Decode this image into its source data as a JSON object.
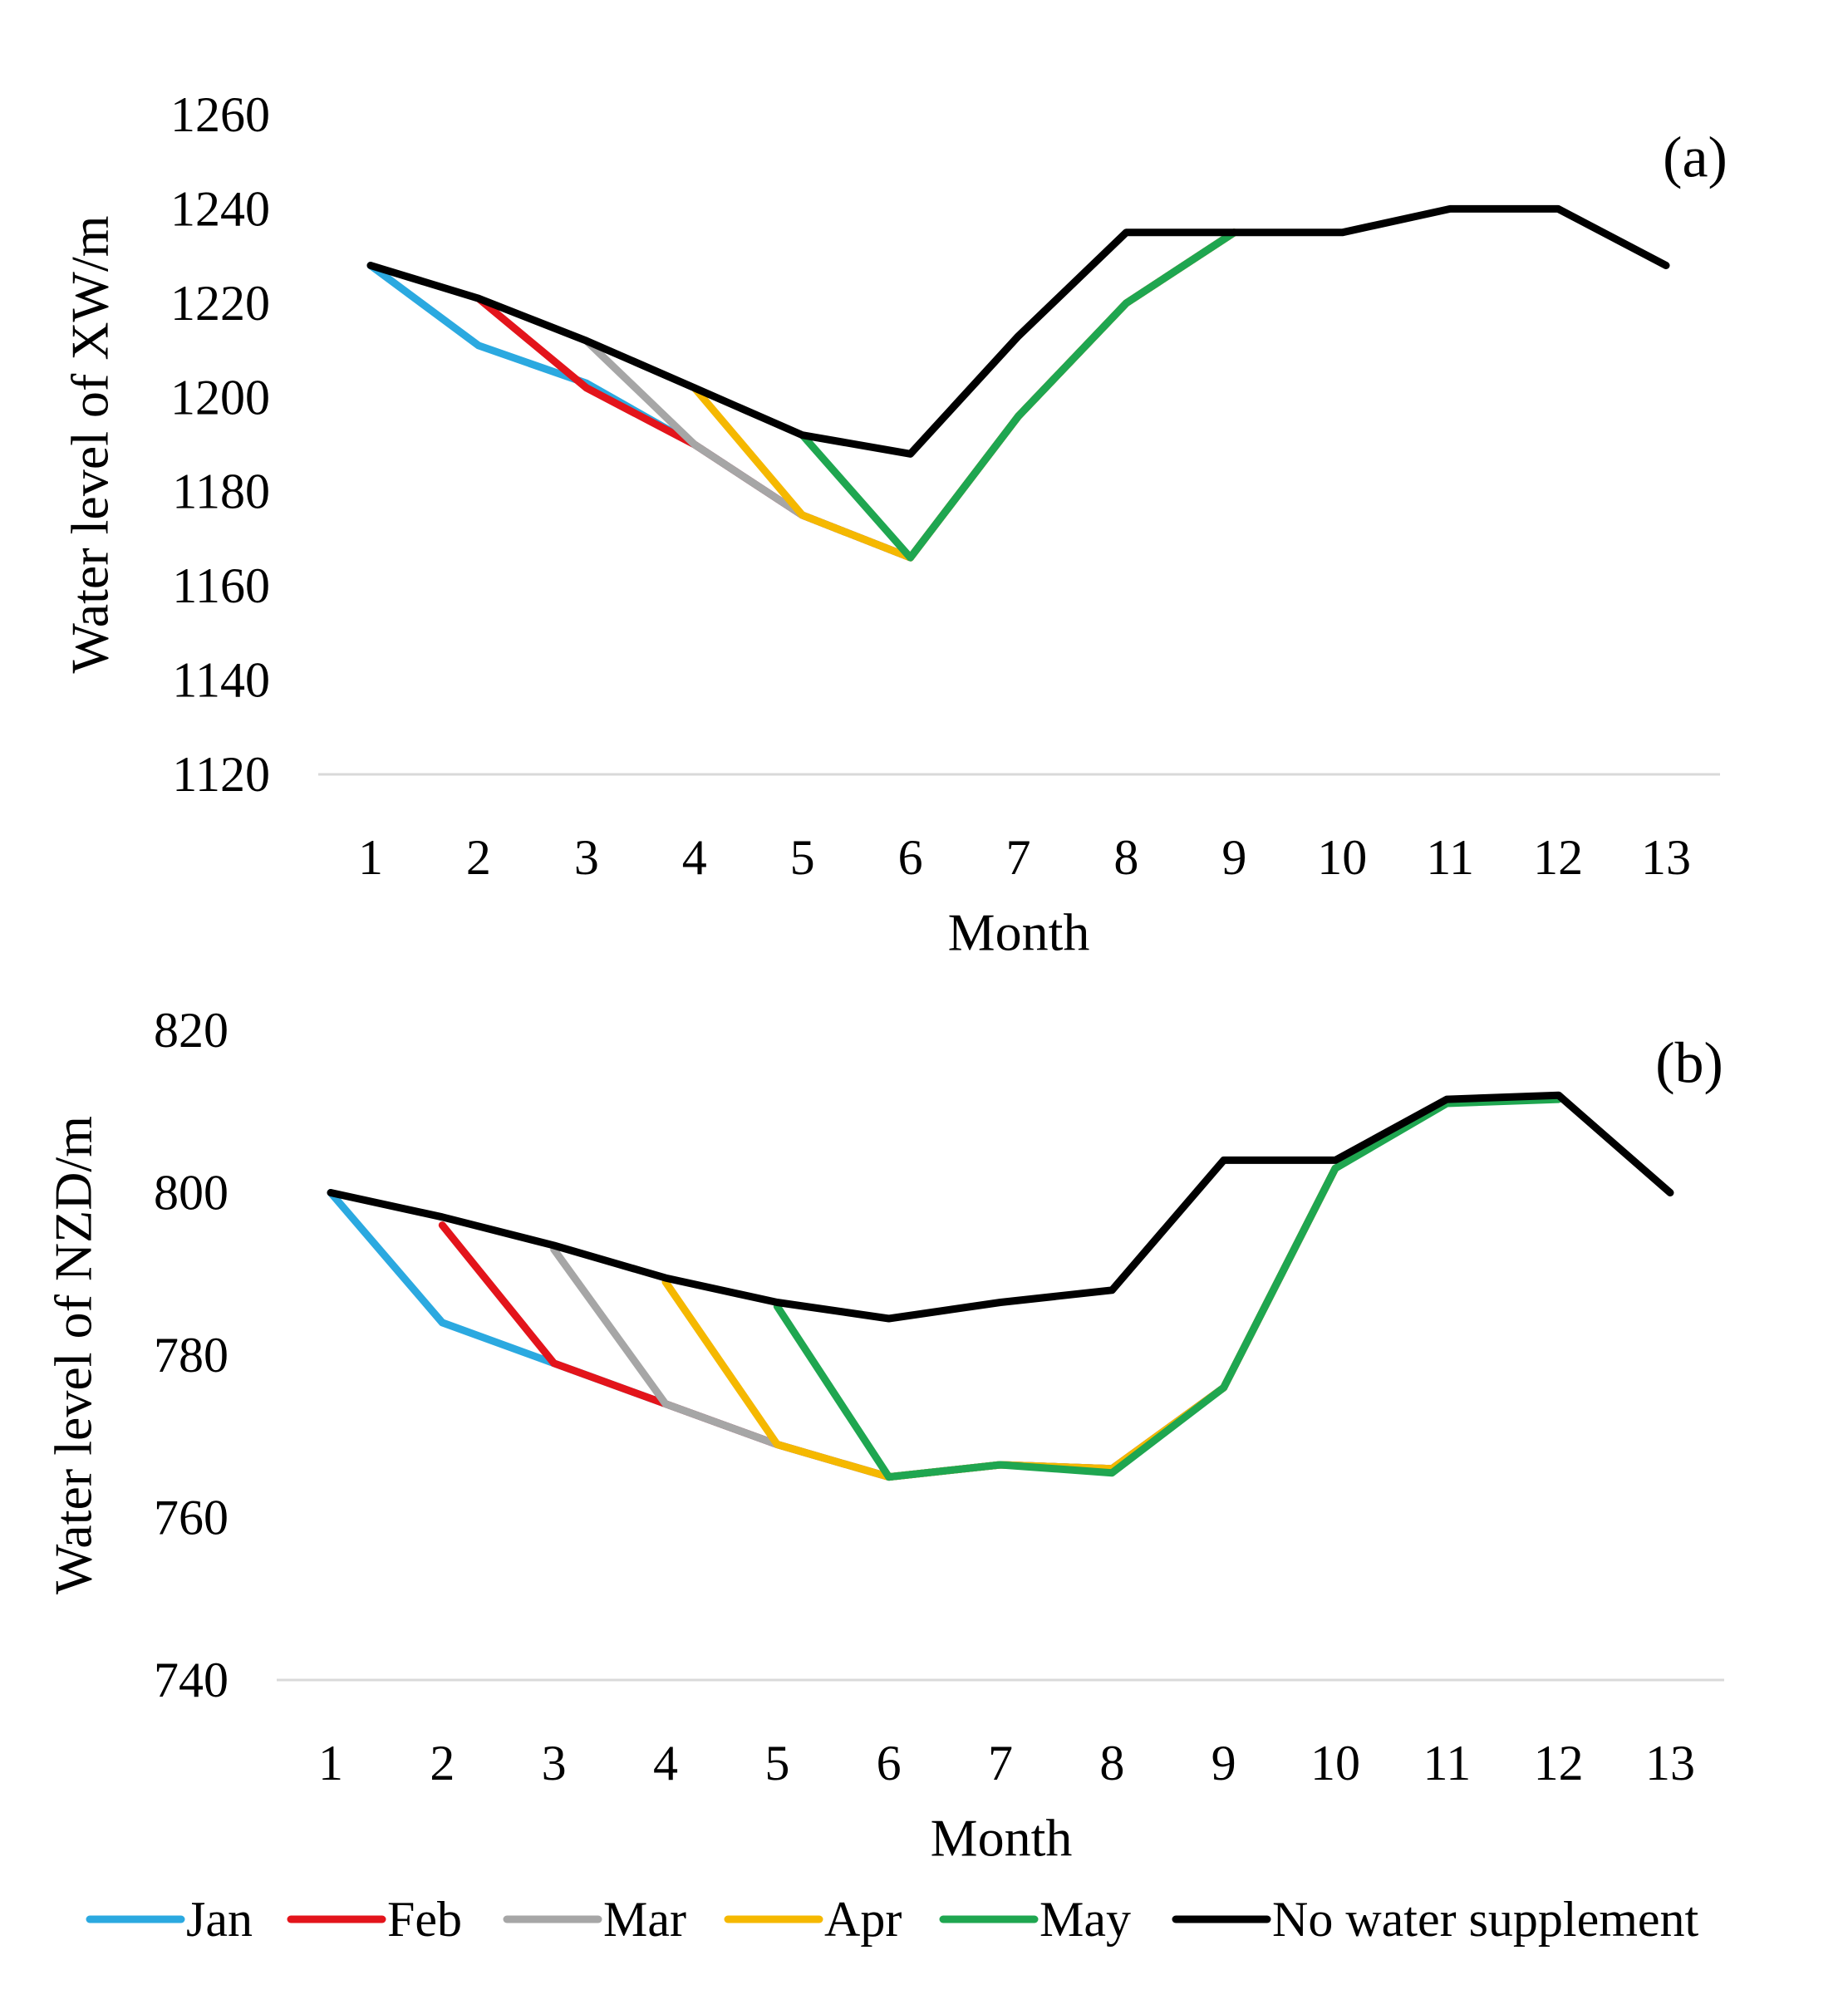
{
  "colors": {
    "Jan": "#2BA9E0",
    "Feb": "#E3141B",
    "Mar": "#A6A6A6",
    "Apr": "#F5B800",
    "May": "#1FA650",
    "No water supplement": "#000000",
    "axis": "#D9D9D9"
  },
  "legend": [
    {
      "key": "Jan",
      "label": "Jan"
    },
    {
      "key": "Feb",
      "label": "Feb"
    },
    {
      "key": "Mar",
      "label": "Mar"
    },
    {
      "key": "Apr",
      "label": "Apr"
    },
    {
      "key": "May",
      "label": "May"
    },
    {
      "key": "No water supplement",
      "label": "No water supplement"
    }
  ],
  "chart_data": [
    {
      "type": "line",
      "panel_label": "(a)",
      "xlabel": "Month",
      "ylabel": "Water level of XW/m",
      "ylim": [
        1120,
        1260
      ],
      "ytick_step": 20,
      "x": [
        1,
        2,
        3,
        4,
        5,
        6,
        7,
        8,
        9,
        10,
        11,
        12,
        13
      ],
      "series": [
        {
          "name": "Jan",
          "points": [
            [
              1,
              1228
            ],
            [
              2,
              1211
            ],
            [
              3,
              1203
            ],
            [
              4,
              1190
            ],
            [
              5,
              1175
            ],
            [
              6,
              1166
            ],
            [
              7,
              1196
            ],
            [
              8,
              1220
            ],
            [
              9,
              1235
            ]
          ]
        },
        {
          "name": "Feb",
          "points": [
            [
              2,
              1221
            ],
            [
              3,
              1202
            ],
            [
              4,
              1190
            ],
            [
              5,
              1175
            ],
            [
              6,
              1166
            ],
            [
              7,
              1196
            ],
            [
              8,
              1220
            ],
            [
              9,
              1235
            ]
          ]
        },
        {
          "name": "Mar",
          "points": [
            [
              3,
              1212
            ],
            [
              4,
              1190
            ],
            [
              5,
              1175
            ],
            [
              6,
              1166
            ],
            [
              7,
              1196
            ],
            [
              8,
              1220
            ],
            [
              9,
              1235
            ]
          ]
        },
        {
          "name": "Apr",
          "points": [
            [
              4,
              1202
            ],
            [
              5,
              1175
            ],
            [
              6,
              1166
            ],
            [
              7,
              1196
            ],
            [
              8,
              1220
            ],
            [
              9,
              1235
            ]
          ]
        },
        {
          "name": "May",
          "points": [
            [
              5,
              1192
            ],
            [
              6,
              1166
            ],
            [
              7,
              1196
            ],
            [
              8,
              1220
            ],
            [
              9,
              1235
            ]
          ]
        },
        {
          "name": "No water supplement",
          "points": [
            [
              1,
              1228
            ],
            [
              2,
              1221
            ],
            [
              3,
              1212
            ],
            [
              4,
              1202
            ],
            [
              5,
              1192
            ],
            [
              6,
              1188
            ],
            [
              7,
              1213
            ],
            [
              8,
              1235
            ],
            [
              9,
              1235
            ],
            [
              10,
              1235
            ],
            [
              11,
              1240
            ],
            [
              12,
              1240
            ],
            [
              13,
              1228
            ]
          ]
        }
      ]
    },
    {
      "type": "line",
      "panel_label": "(b)",
      "xlabel": "Month",
      "ylabel": "Water level of NZD/m",
      "ylim": [
        740,
        820
      ],
      "ytick_step": 20,
      "x": [
        1,
        2,
        3,
        4,
        5,
        6,
        7,
        8,
        9,
        10,
        11,
        12,
        13
      ],
      "series": [
        {
          "name": "Jan",
          "points": [
            [
              1,
              800
            ],
            [
              2,
              784
            ],
            [
              3,
              779
            ],
            [
              4,
              774
            ],
            [
              5,
              769
            ],
            [
              6,
              765
            ],
            [
              7,
              766.5
            ],
            [
              8,
              766
            ],
            [
              9,
              776
            ],
            [
              10,
              803
            ]
          ]
        },
        {
          "name": "Feb",
          "points": [
            [
              2,
              796
            ],
            [
              3,
              779
            ],
            [
              4,
              774
            ],
            [
              5,
              769
            ],
            [
              6,
              765
            ],
            [
              7,
              766.5
            ],
            [
              8,
              766
            ],
            [
              9,
              776
            ],
            [
              10,
              803
            ]
          ]
        },
        {
          "name": "Mar",
          "points": [
            [
              3,
              793
            ],
            [
              4,
              774
            ],
            [
              5,
              769
            ],
            [
              6,
              765
            ],
            [
              7,
              766.5
            ],
            [
              8,
              766
            ],
            [
              9,
              776
            ],
            [
              10,
              803
            ]
          ]
        },
        {
          "name": "Apr",
          "points": [
            [
              4,
              789
            ],
            [
              5,
              769
            ],
            [
              6,
              765
            ],
            [
              7,
              766.5
            ],
            [
              8,
              766
            ],
            [
              9,
              776
            ],
            [
              10,
              803
            ]
          ]
        },
        {
          "name": "May",
          "points": [
            [
              5,
              786
            ],
            [
              6,
              765
            ],
            [
              7,
              766.5
            ],
            [
              8,
              765.5
            ],
            [
              9,
              776
            ],
            [
              10,
              803
            ],
            [
              11,
              811
            ],
            [
              12,
              811.5
            ]
          ]
        },
        {
          "name": "No water supplement",
          "points": [
            [
              1,
              800
            ],
            [
              2,
              797
            ],
            [
              3,
              793.5
            ],
            [
              4,
              789.5
            ],
            [
              5,
              786.5
            ],
            [
              6,
              784.5
            ],
            [
              7,
              786.5
            ],
            [
              8,
              788
            ],
            [
              9,
              804
            ],
            [
              10,
              804
            ],
            [
              11,
              811.5
            ],
            [
              12,
              812
            ],
            [
              13,
              800
            ]
          ]
        }
      ]
    }
  ]
}
